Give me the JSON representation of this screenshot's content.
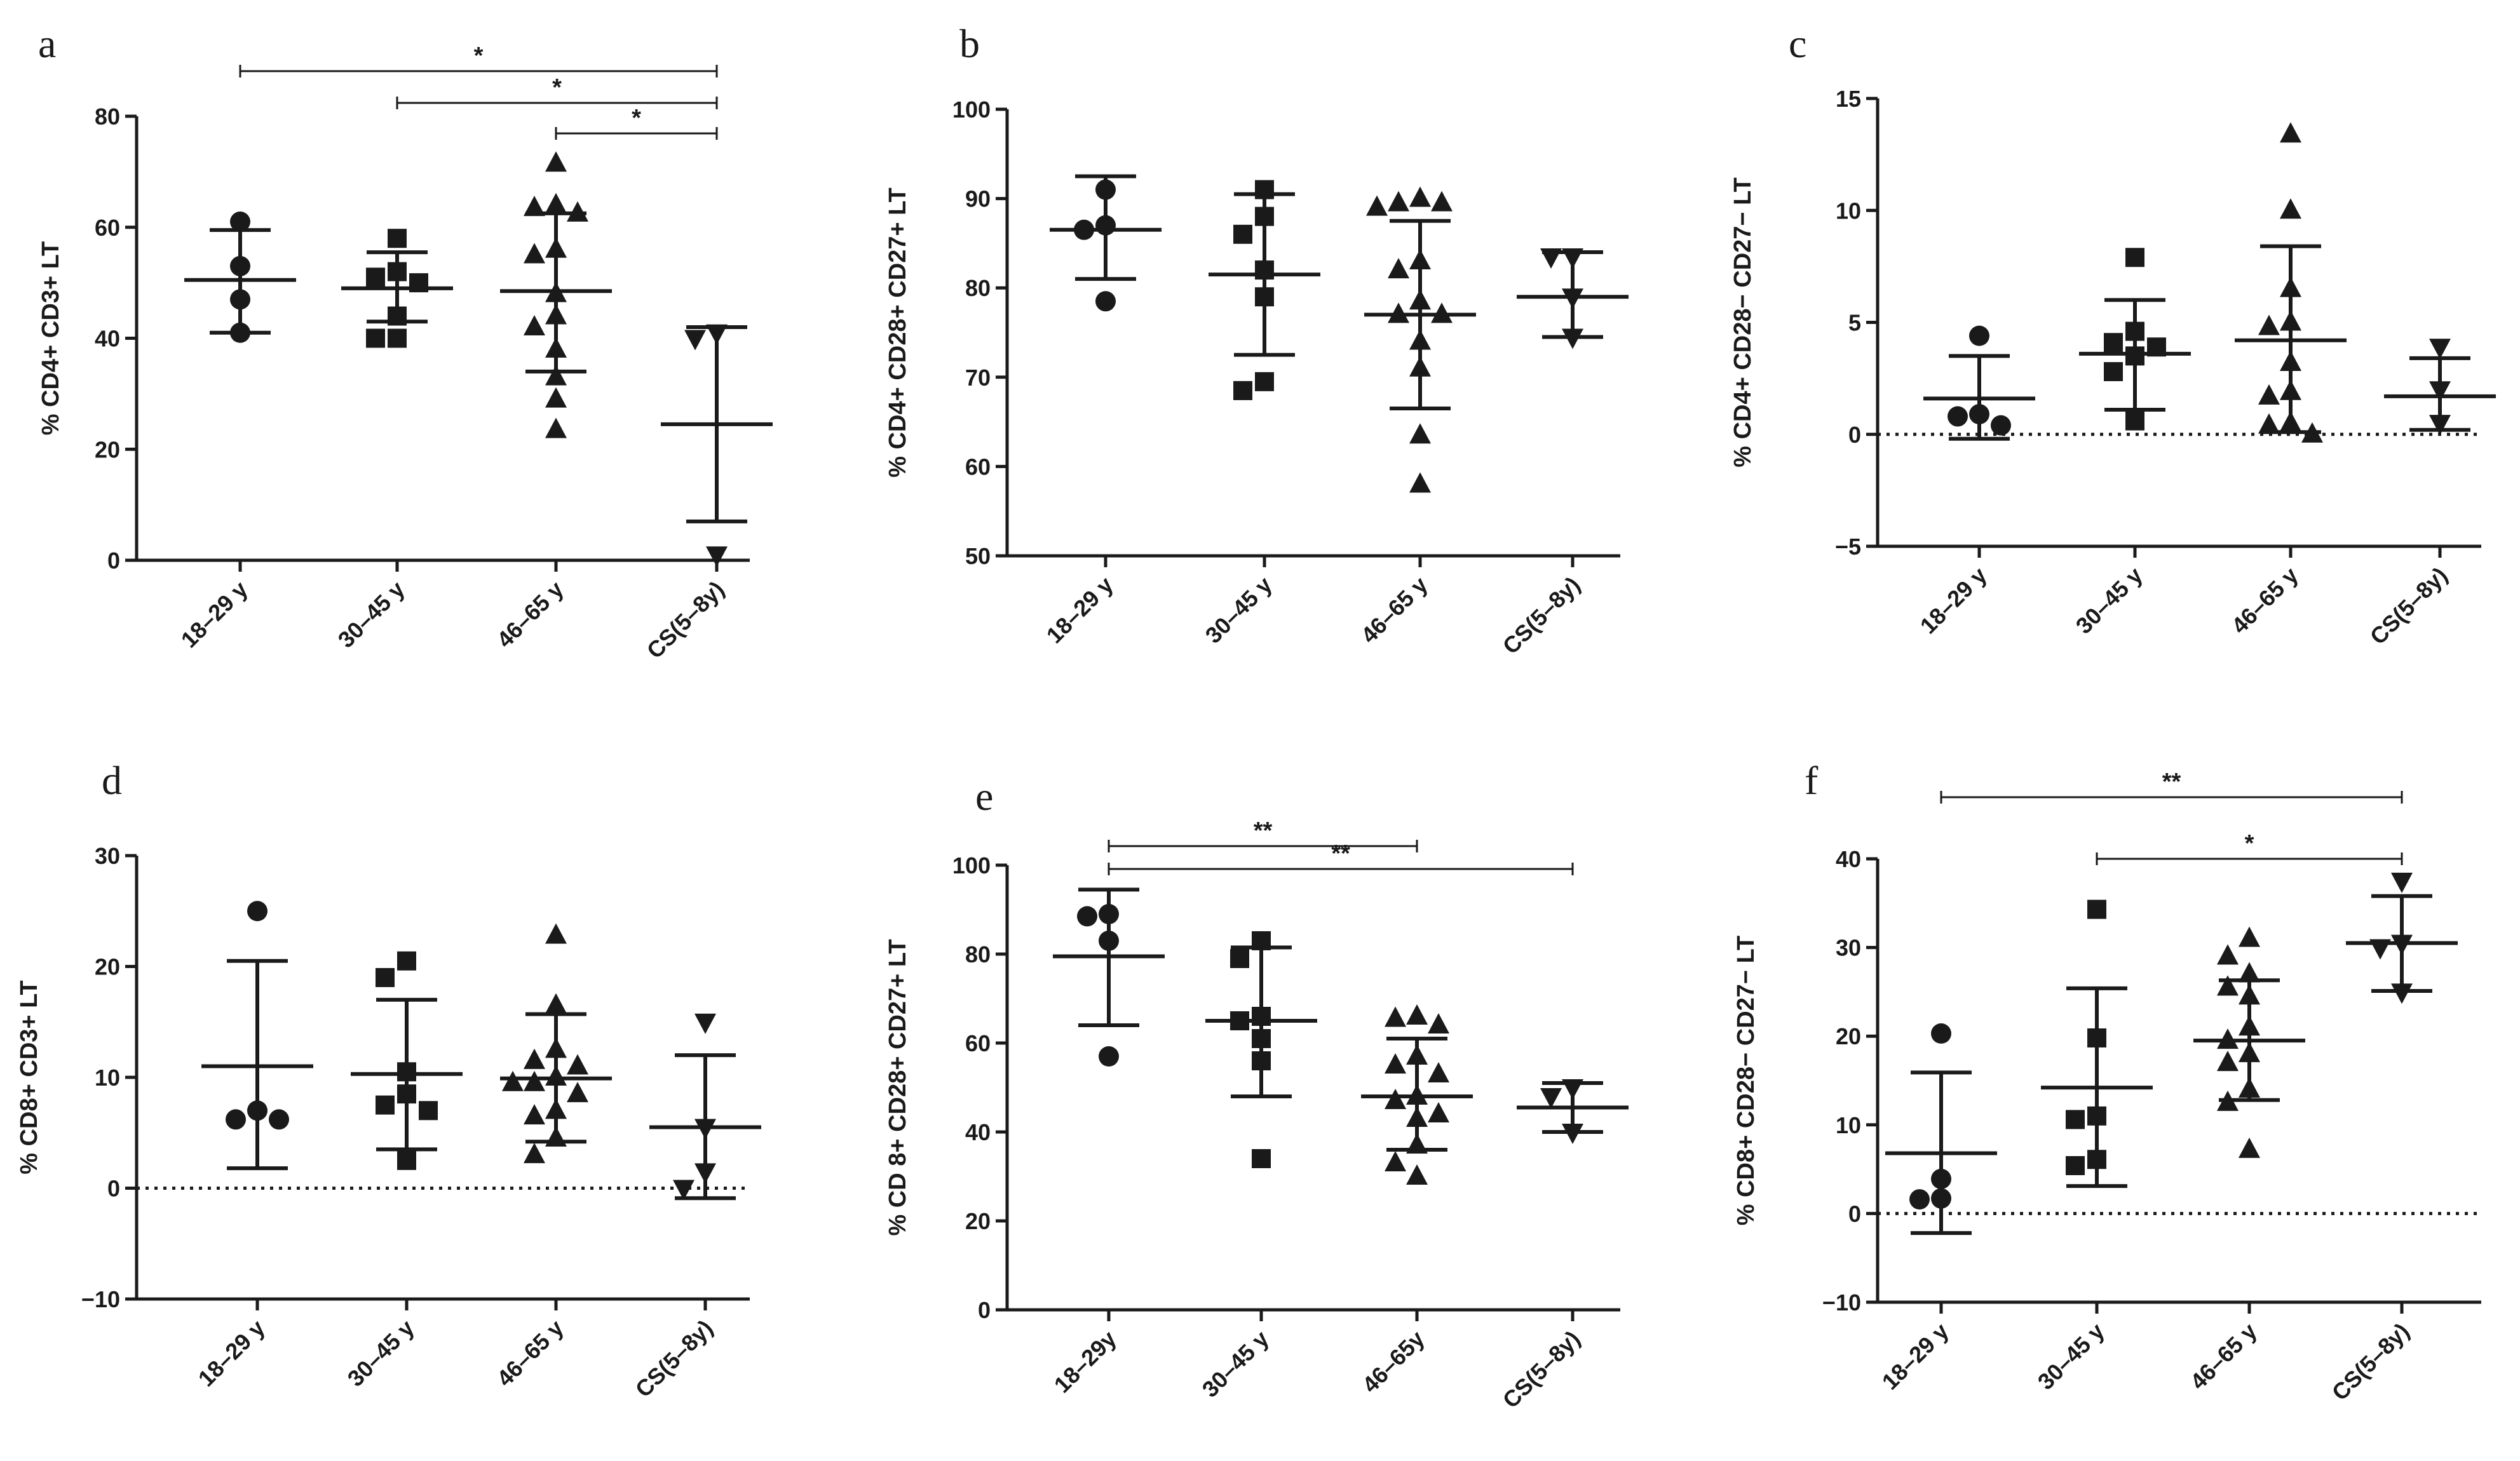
{
  "chart_data": [
    {
      "type": "scatter",
      "panel": "a",
      "ylabel": "% CD4+ CD3+ LT",
      "ylim": [
        0,
        80
      ],
      "yticks": [
        0,
        20,
        40,
        60,
        80
      ],
      "zero_line": false,
      "categories": [
        "18–29 y",
        "30–45 y",
        "46–65 y",
        "CS(5–8y)"
      ],
      "groups": [
        {
          "marker": "circle",
          "mean": 50.5,
          "sd_low": 41,
          "sd_high": 59.5,
          "points": [
            61,
            53,
            47,
            41
          ]
        },
        {
          "marker": "square",
          "mean": 49,
          "sd_low": 43,
          "sd_high": 55.5,
          "points": [
            58,
            52,
            51,
            50,
            44,
            40,
            40
          ]
        },
        {
          "marker": "triangle-up",
          "mean": 48.5,
          "sd_low": 34,
          "sd_high": 62.5,
          "points": [
            71.5,
            64,
            63.5,
            62.5,
            56,
            55,
            48,
            44,
            42,
            38,
            33,
            29,
            23.5
          ]
        },
        {
          "marker": "triangle-down",
          "mean": 24.5,
          "sd_low": 7,
          "sd_high": 42,
          "points": [
            41,
            40,
            1
          ]
        }
      ],
      "significance": [
        {
          "from": 0,
          "to": 3,
          "label": "*"
        },
        {
          "from": 1,
          "to": 3,
          "label": "*"
        },
        {
          "from": 2,
          "to": 3,
          "label": "*"
        }
      ]
    },
    {
      "type": "scatter",
      "panel": "b",
      "ylabel": "% CD4+ CD28+ CD27+ LT",
      "ylim": [
        50,
        100
      ],
      "yticks": [
        50,
        60,
        70,
        80,
        90,
        100
      ],
      "zero_line": false,
      "categories": [
        "18–29 y",
        "30–45 y",
        "46–65 y",
        "CS(5–8y)"
      ],
      "groups": [
        {
          "marker": "circle",
          "mean": 86.5,
          "sd_low": 81,
          "sd_high": 92.5,
          "points": [
            91,
            87,
            86.5,
            78.5
          ]
        },
        {
          "marker": "square",
          "mean": 81.5,
          "sd_low": 72.5,
          "sd_high": 90.5,
          "points": [
            91,
            88,
            86,
            82,
            79,
            69.5,
            68.5
          ]
        },
        {
          "marker": "triangle-up",
          "mean": 77,
          "sd_low": 66.5,
          "sd_high": 87.5,
          "points": [
            90,
            89.5,
            89.5,
            89,
            83,
            82,
            78.5,
            77,
            77,
            74,
            71,
            63.5,
            58
          ]
        },
        {
          "marker": "triangle-down",
          "mean": 79,
          "sd_low": 74.5,
          "sd_high": 84,
          "points": [
            83.5,
            83.5,
            79,
            74.5
          ]
        }
      ],
      "significance": []
    },
    {
      "type": "scatter",
      "panel": "c",
      "ylabel": "% CD4+ CD28− CD27− LT",
      "ylim": [
        -5,
        15
      ],
      "yticks": [
        -5,
        0,
        5,
        10,
        15
      ],
      "zero_line": true,
      "categories": [
        "18–29 y",
        "30–45 y",
        "46–65 y",
        "CS(5–8y)"
      ],
      "groups": [
        {
          "marker": "circle",
          "mean": 1.6,
          "sd_low": -0.2,
          "sd_high": 3.5,
          "points": [
            4.4,
            0.9,
            0.8,
            0.4
          ]
        },
        {
          "marker": "square",
          "mean": 3.6,
          "sd_low": 1.1,
          "sd_high": 6,
          "points": [
            7.9,
            4.6,
            4.1,
            3.9,
            3.5,
            2.8,
            0.6
          ]
        },
        {
          "marker": "triangle-up",
          "mean": 4.2,
          "sd_low": 0.1,
          "sd_high": 8.4,
          "points": [
            13.4,
            10,
            6.5,
            5,
            4.8,
            3.2,
            1.9,
            1.7,
            0.5,
            0.4,
            0
          ]
        },
        {
          "marker": "triangle-down",
          "mean": 1.7,
          "sd_low": 0.2,
          "sd_high": 3.4,
          "points": [
            3.9,
            2,
            0.5
          ]
        }
      ],
      "significance": []
    },
    {
      "type": "scatter",
      "panel": "d",
      "ylabel": "% CD8+ CD3+ LT",
      "ylim": [
        -10,
        30
      ],
      "yticks": [
        -10,
        0,
        10,
        20,
        30
      ],
      "zero_line": true,
      "categories": [
        "18–29 y",
        "30–45 y",
        "46–65 y",
        "CS(5–8y)"
      ],
      "groups": [
        {
          "marker": "circle",
          "mean": 11,
          "sd_low": 1.8,
          "sd_high": 20.5,
          "points": [
            25,
            7,
            6.2,
            6.2
          ]
        },
        {
          "marker": "square",
          "mean": 10.3,
          "sd_low": 3.5,
          "sd_high": 17,
          "points": [
            20.5,
            19,
            10.5,
            8.5,
            7.5,
            7,
            2.5
          ]
        },
        {
          "marker": "triangle-up",
          "mean": 9.9,
          "sd_low": 4.2,
          "sd_high": 15.7,
          "points": [
            22.8,
            16.5,
            12.5,
            11.5,
            11,
            10,
            9.5,
            9.5,
            8.5,
            7,
            6.5,
            4.5,
            3
          ]
        },
        {
          "marker": "triangle-down",
          "mean": 5.5,
          "sd_low": -0.9,
          "sd_high": 12,
          "points": [
            15,
            5.5,
            1.5,
            0
          ]
        }
      ],
      "significance": []
    },
    {
      "type": "scatter",
      "panel": "e",
      "ylabel": "% CD 8+ CD28+ CD27+ LT",
      "ylim": [
        0,
        100
      ],
      "yticks": [
        0,
        20,
        40,
        60,
        80,
        100
      ],
      "zero_line": false,
      "categories": [
        "18–29y",
        "30–45 y",
        "46–65y",
        "CS(5–8y)"
      ],
      "groups": [
        {
          "marker": "circle",
          "mean": 79.5,
          "sd_low": 64,
          "sd_high": 94.5,
          "points": [
            89,
            88.5,
            83,
            57
          ]
        },
        {
          "marker": "square",
          "mean": 65,
          "sd_low": 48,
          "sd_high": 81.5,
          "points": [
            83,
            79,
            66,
            65,
            61,
            56,
            34
          ]
        },
        {
          "marker": "triangle-up",
          "mean": 48,
          "sd_low": 36,
          "sd_high": 61,
          "points": [
            66,
            65.5,
            64,
            57,
            55,
            53,
            48,
            47,
            44,
            43,
            37,
            33,
            30
          ]
        },
        {
          "marker": "triangle-down",
          "mean": 45.5,
          "sd_low": 40,
          "sd_high": 51,
          "points": [
            50,
            48,
            40
          ]
        }
      ],
      "significance": [
        {
          "from": 0,
          "to": 2,
          "label": "**"
        },
        {
          "from": 0,
          "to": 3,
          "label": "**"
        }
      ]
    },
    {
      "type": "scatter",
      "panel": "f",
      "ylabel": "% CD8+ CD28− CD27− LT",
      "ylim": [
        -10,
        40
      ],
      "yticks": [
        -10,
        0,
        10,
        20,
        30,
        40
      ],
      "zero_line": true,
      "categories": [
        "18–29 y",
        "30–45 y",
        "46–65 y",
        "CS(5–8y)"
      ],
      "groups": [
        {
          "marker": "circle",
          "mean": 6.8,
          "sd_low": -2.2,
          "sd_high": 15.9,
          "points": [
            20.3,
            3.9,
            1.7,
            1.6
          ]
        },
        {
          "marker": "square",
          "mean": 14.2,
          "sd_low": 3.1,
          "sd_high": 25.4,
          "points": [
            34.3,
            19.8,
            11,
            10.6,
            6.1,
            5.4
          ]
        },
        {
          "marker": "triangle-up",
          "mean": 19.5,
          "sd_low": 12.8,
          "sd_high": 26.3,
          "points": [
            31,
            29,
            27,
            25.5,
            24.5,
            21,
            19.5,
            18,
            17,
            14,
            12.5,
            7.2
          ]
        },
        {
          "marker": "triangle-down",
          "mean": 30.5,
          "sd_low": 25.1,
          "sd_high": 35.8,
          "points": [
            37.5,
            30.5,
            30,
            25
          ]
        }
      ],
      "significance": [
        {
          "from": 0,
          "to": 3,
          "label": "**"
        },
        {
          "from": 1,
          "to": 3,
          "label": "*"
        }
      ]
    }
  ]
}
